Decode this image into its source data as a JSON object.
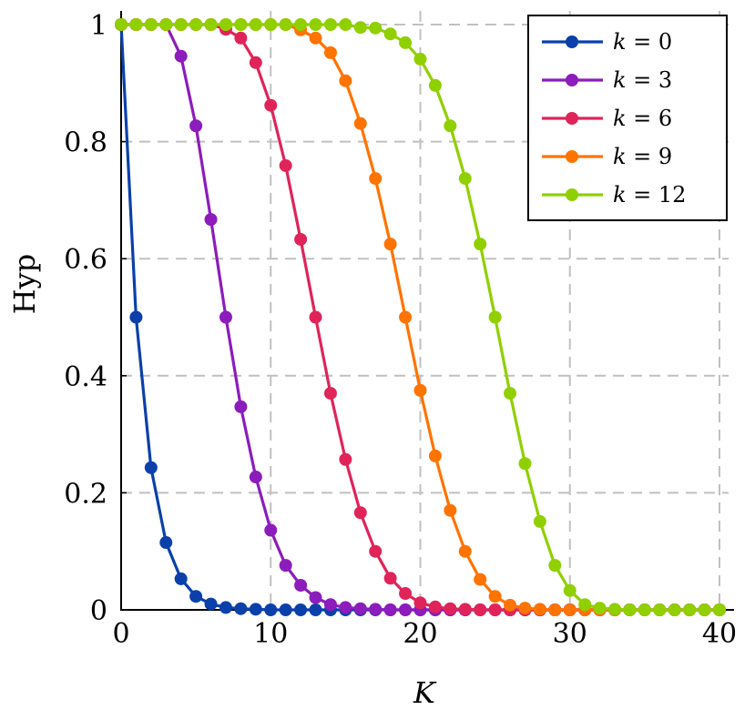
{
  "chart_data": {
    "type": "line",
    "title": "",
    "xlabel": "K",
    "ylabel": "Hyp",
    "xlim": [
      0,
      40
    ],
    "ylim": [
      0,
      1
    ],
    "xticks": [
      0,
      10,
      20,
      30,
      40
    ],
    "xtick_labels": [
      "0",
      "10",
      "20",
      "30",
      "40"
    ],
    "yticks": [
      0,
      0.2,
      0.4,
      0.6,
      0.8,
      1
    ],
    "ytick_labels": [
      "0",
      "0.2",
      "0.4",
      "0.6",
      "0.8",
      "1"
    ],
    "grid": true,
    "legend_position": "upper right",
    "x": [
      0,
      1,
      2,
      3,
      4,
      5,
      6,
      7,
      8,
      9,
      10,
      11,
      12,
      13,
      14,
      15,
      16,
      17,
      18,
      19,
      20,
      21,
      22,
      23,
      24,
      25,
      26,
      27,
      28,
      29,
      30,
      31,
      32,
      33,
      34,
      35,
      36,
      37,
      38,
      39,
      40
    ],
    "series": [
      {
        "name": "k = 0",
        "k_label": "k",
        "k_value": "0",
        "color": "#0b40aa",
        "values": [
          1,
          0.5,
          0.243,
          0.115,
          0.053,
          0.023,
          0.01,
          0.004,
          0.002,
          0.001,
          0,
          0,
          0,
          0,
          0,
          0,
          0,
          0,
          0,
          0,
          0,
          0,
          0,
          0,
          0,
          0,
          0,
          0,
          0,
          0,
          0,
          0,
          0,
          0,
          0,
          0,
          0,
          0,
          0,
          0,
          0
        ]
      },
      {
        "name": "k = 3",
        "k_label": "k",
        "k_value": "3",
        "color": "#8c1cbc",
        "values": [
          1,
          1,
          1,
          1,
          0.946,
          0.827,
          0.667,
          0.5,
          0.347,
          0.227,
          0.136,
          0.076,
          0.042,
          0.021,
          0.009,
          0.004,
          0.002,
          0.001,
          0,
          0,
          0,
          0,
          0,
          0,
          0,
          0,
          0,
          0,
          0,
          0,
          0,
          0,
          0,
          0,
          0,
          0,
          0,
          0,
          0,
          0,
          0
        ]
      },
      {
        "name": "k = 6",
        "k_label": "k",
        "k_value": "6",
        "color": "#e0245a",
        "values": [
          1,
          1,
          1,
          1,
          1,
          1,
          1,
          0.992,
          0.977,
          0.935,
          0.862,
          0.759,
          0.633,
          0.5,
          0.37,
          0.257,
          0.166,
          0.1,
          0.054,
          0.028,
          0.012,
          0.005,
          0.002,
          0.001,
          0,
          0,
          0,
          0,
          0,
          0,
          0,
          0,
          0,
          0,
          0,
          0,
          0,
          0,
          0,
          0,
          0
        ]
      },
      {
        "name": "k = 9",
        "k_label": "k",
        "k_value": "9",
        "color": "#ff7300",
        "values": [
          1,
          1,
          1,
          1,
          1,
          1,
          1,
          1,
          1,
          1,
          1,
          1,
          0.991,
          0.977,
          0.952,
          0.904,
          0.831,
          0.737,
          0.625,
          0.5,
          0.375,
          0.263,
          0.17,
          0.1,
          0.052,
          0.023,
          0.008,
          0.003,
          0.001,
          0,
          0,
          0,
          0,
          0,
          0,
          0,
          0,
          0,
          0,
          0,
          0
        ]
      },
      {
        "name": "k = 12",
        "k_label": "k",
        "k_value": "12",
        "color": "#90d000",
        "values": [
          1,
          1,
          1,
          1,
          1,
          1,
          1,
          1,
          1,
          1,
          1,
          1,
          1,
          1,
          1,
          1,
          0.995,
          0.994,
          0.984,
          0.969,
          0.941,
          0.896,
          0.827,
          0.737,
          0.625,
          0.5,
          0.37,
          0.25,
          0.151,
          0.076,
          0.033,
          0.009,
          0.003,
          0.001,
          0,
          0,
          0,
          0,
          0,
          0,
          0
        ]
      }
    ]
  },
  "style": {
    "grid_color": "#c0c0c0",
    "axis_color": "#000000",
    "legend_border_color": "#000000"
  }
}
